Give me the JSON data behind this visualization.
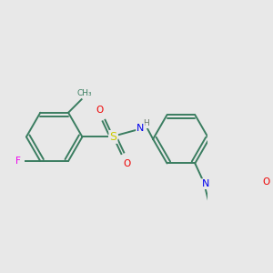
{
  "bg_color": "#e8e8e8",
  "bond_color": "#3a7d60",
  "atom_colors": {
    "N": "#0000ee",
    "O": "#ee0000",
    "S": "#cccc00",
    "F": "#ee00ee",
    "H": "#667766",
    "C": "#3a7d60"
  },
  "figsize": [
    3.0,
    3.0
  ],
  "dpi": 100
}
